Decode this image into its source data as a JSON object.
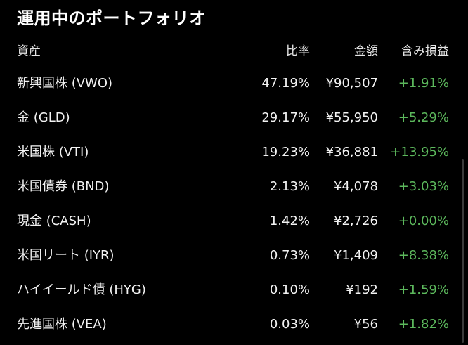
{
  "title": "運用中のポートフォリオ",
  "headers": {
    "asset": "資産",
    "ratio": "比率",
    "amount": "金額",
    "gain": "含み損益"
  },
  "colors": {
    "background": "#000000",
    "text": "#f2f2f2",
    "positive": "#5cb85c"
  },
  "rows": [
    {
      "name": "新興国株 (VWO)",
      "ratio": "47.19%",
      "amount": "¥90,507",
      "gain": "+1.91%"
    },
    {
      "name": "金 (GLD)",
      "ratio": "29.17%",
      "amount": "¥55,950",
      "gain": "+5.29%"
    },
    {
      "name": "米国株 (VTI)",
      "ratio": "19.23%",
      "amount": "¥36,881",
      "gain": "+13.95%"
    },
    {
      "name": "米国債券 (BND)",
      "ratio": "2.13%",
      "amount": "¥4,078",
      "gain": "+3.03%"
    },
    {
      "name": "現金 (CASH)",
      "ratio": "1.42%",
      "amount": "¥2,726",
      "gain": "+0.00%"
    },
    {
      "name": "米国リート (IYR)",
      "ratio": "0.73%",
      "amount": "¥1,409",
      "gain": "+8.38%"
    },
    {
      "name": "ハイイールド債 (HYG)",
      "ratio": "0.10%",
      "amount": "¥192",
      "gain": "+1.59%"
    },
    {
      "name": "先進国株 (VEA)",
      "ratio": "0.03%",
      "amount": "¥56",
      "gain": "+1.82%"
    }
  ]
}
